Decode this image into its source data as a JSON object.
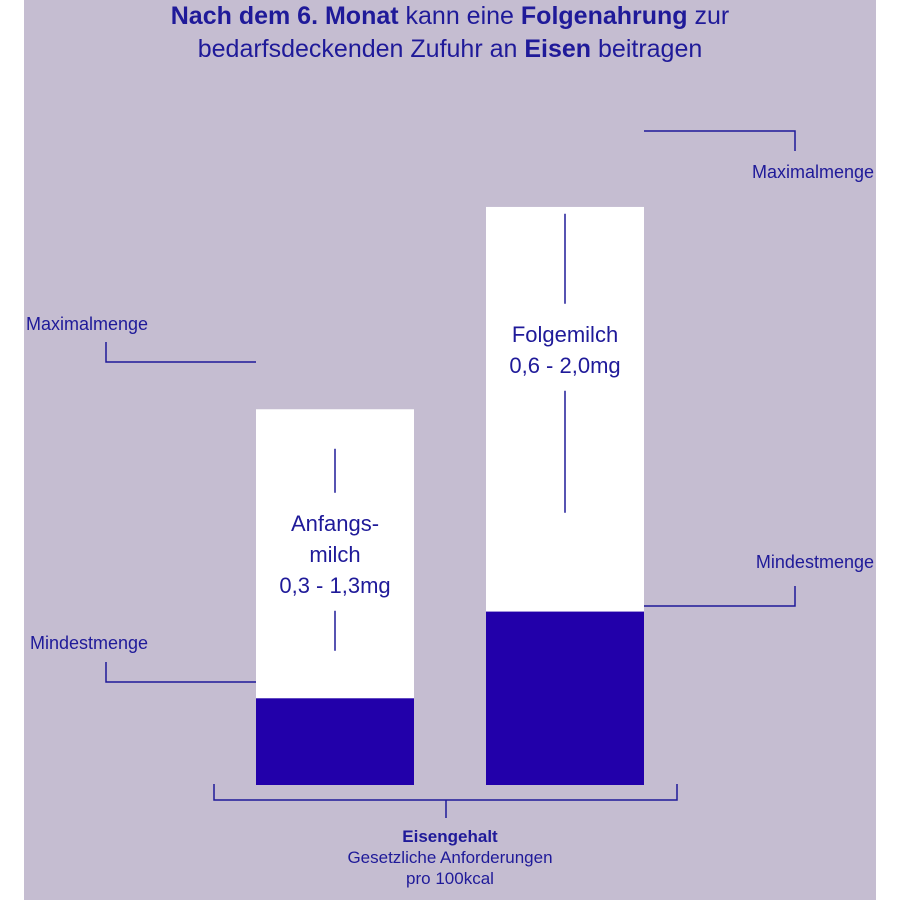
{
  "title": {
    "line1": [
      {
        "text": "Nach dem 6. Monat",
        "bold": true
      },
      {
        "text": " kann eine ",
        "bold": false
      },
      {
        "text": "Folgenahrung",
        "bold": true
      },
      {
        "text": " zur",
        "bold": false
      }
    ],
    "line2": [
      {
        "text": "bedarfsdeckenden Zufuhr an ",
        "bold": false
      },
      {
        "text": "Eisen",
        "bold": true
      },
      {
        "text": " beitragen",
        "bold": false
      }
    ]
  },
  "colors": {
    "background": "#c5bdd1",
    "bar_fill": "#ffffff",
    "min_fill": "#2200aa",
    "text": "#1f1a99"
  },
  "chart_data": {
    "type": "bar",
    "unit": "mg",
    "ylim": [
      0,
      2.37
    ],
    "grid": false,
    "categories": [
      "Anfangsmilch",
      "Folgemilch"
    ],
    "series": [
      {
        "name": "Anfangsmilch",
        "label_lines": [
          "Anfangs-",
          "milch",
          "0,3 - 1,3mg"
        ],
        "min": 0.3,
        "max": 1.3,
        "min_label": "Mindestmenge",
        "max_label": "Maximalmenge",
        "annotation_side": "left"
      },
      {
        "name": "Folgemilch",
        "label_lines": [
          "Folgemilch",
          "0,6 - 2,0mg"
        ],
        "min": 0.6,
        "max": 2.0,
        "min_label": "Mindestmenge",
        "max_label": "Maximalmenge",
        "annotation_side": "right"
      }
    ],
    "xlabel": "Eisengehalt",
    "xlabel_sub": [
      "Gesetzliche Anforderungen",
      "pro 100kcal"
    ]
  }
}
